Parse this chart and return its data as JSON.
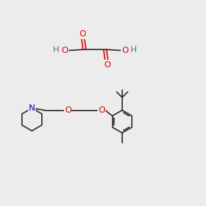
{
  "background_color": "#ececec",
  "bond_color": "#2f2f2f",
  "atom_colors": {
    "O": "#dd0000",
    "N": "#0000cc",
    "C": "#2f2f2f",
    "H": "#607070"
  },
  "fig_width": 3.0,
  "fig_height": 3.0,
  "dpi": 100
}
